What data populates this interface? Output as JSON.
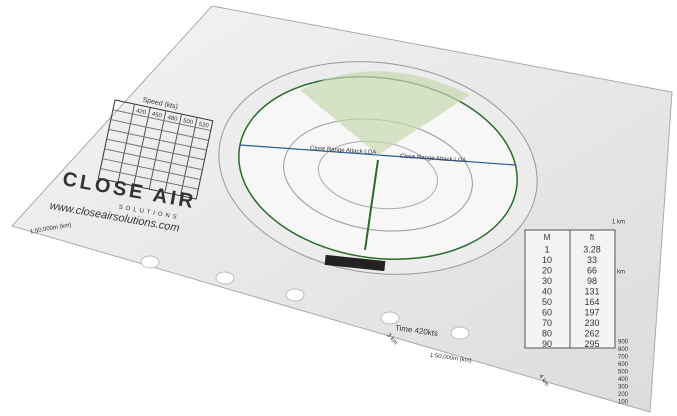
{
  "brand": {
    "name": "CLOSE AIR",
    "sub": "SOLUTIONS",
    "url": "www.closeairsolutions.com"
  },
  "speed_table": {
    "title": "Speed (kts)",
    "headers": [
      "420",
      "450",
      "480",
      "500",
      "520"
    ]
  },
  "circle_labels": [
    "Close Range Attack LOA",
    "Close Range Attack LOA"
  ],
  "time_label": "Time 420kts",
  "scale_labels": [
    "1:50,000m (km)",
    "1:50,000m (km)",
    "1 km",
    "2 km",
    "3 km",
    "4 km"
  ],
  "conversion": {
    "headers": [
      "M",
      "ft"
    ],
    "rows": [
      [
        "1",
        "3.28"
      ],
      [
        "10",
        "33"
      ],
      [
        "20",
        "66"
      ],
      [
        "30",
        "98"
      ],
      [
        "40",
        "131"
      ],
      [
        "50",
        "164"
      ],
      [
        "60",
        "197"
      ],
      [
        "70",
        "230"
      ],
      [
        "80",
        "262"
      ],
      [
        "90",
        "295"
      ]
    ]
  },
  "ruler": [
    "900",
    "800",
    "700",
    "600",
    "500",
    "400",
    "300",
    "200",
    "100"
  ]
}
